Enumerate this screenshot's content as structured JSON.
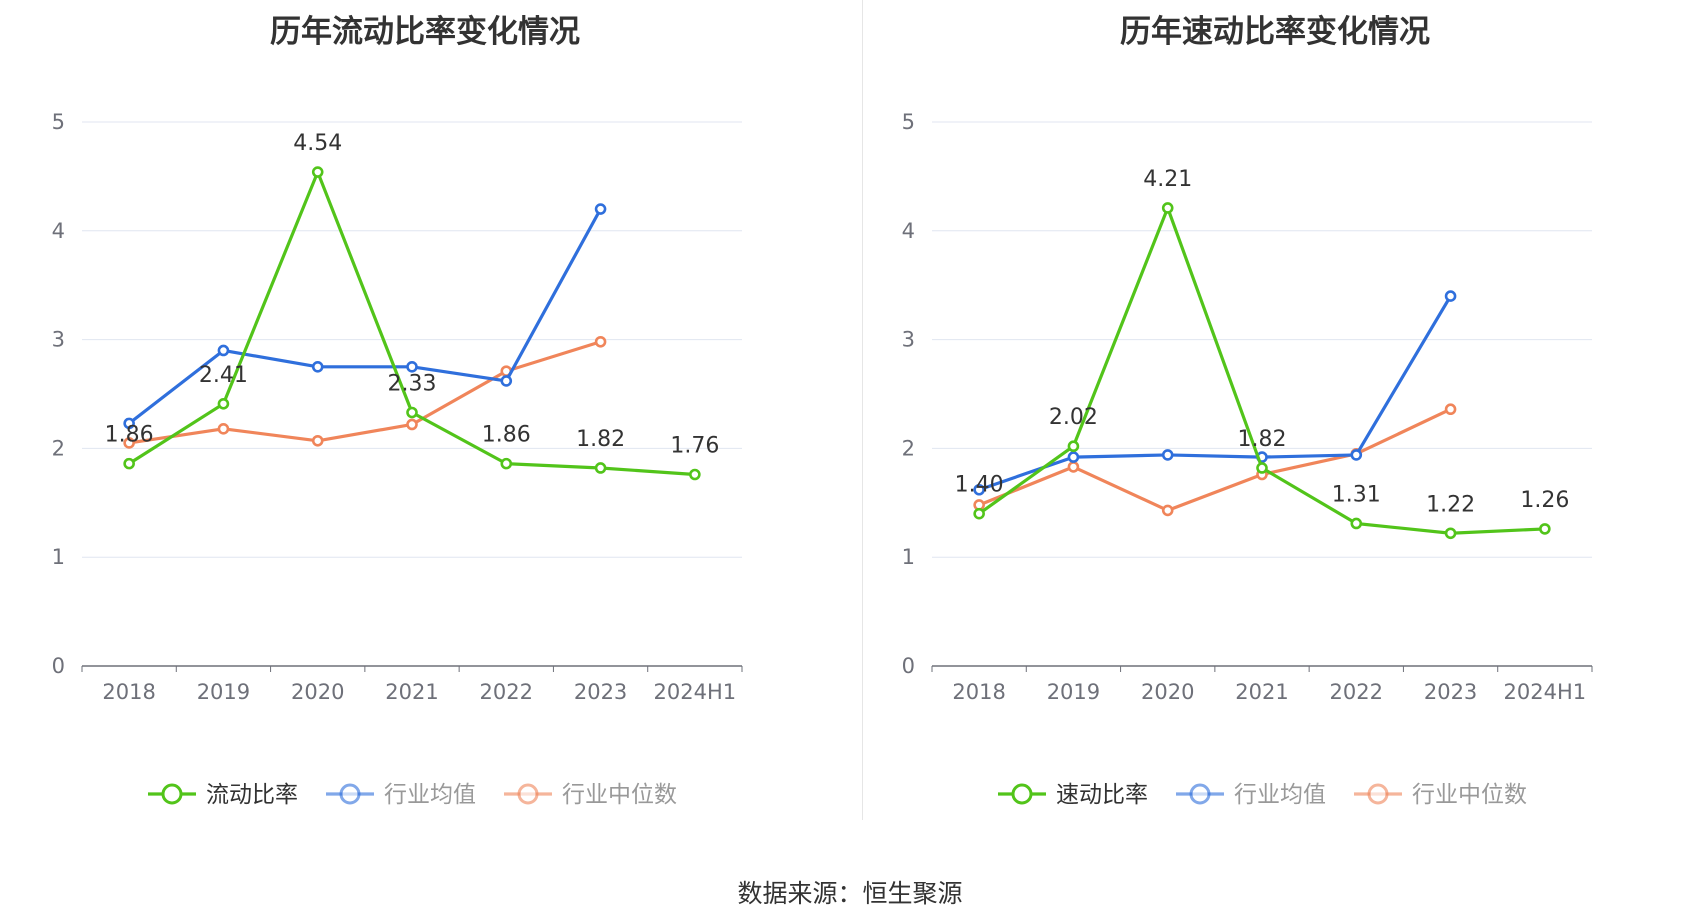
{
  "source_text": "数据来源：恒生聚源",
  "chart_data": [
    {
      "type": "line",
      "title": "历年流动比率变化情况",
      "categories": [
        "2018",
        "2019",
        "2020",
        "2021",
        "2022",
        "2023",
        "2024H1"
      ],
      "ylim": [
        0,
        5
      ],
      "yticks": [
        "0",
        "1",
        "2",
        "3",
        "4",
        "5"
      ],
      "grid": true,
      "legend_position": "bottom",
      "series": [
        {
          "name": "流动比率",
          "color": "#52c41a",
          "values": [
            1.86,
            2.41,
            4.54,
            2.33,
            1.86,
            1.82,
            1.76
          ],
          "labels": [
            "1.86",
            "2.41",
            "4.54",
            "2.33",
            "1.86",
            "1.82",
            "1.76"
          ]
        },
        {
          "name": "行业均值",
          "color": "#2f6fdc",
          "values": [
            2.23,
            2.9,
            2.75,
            2.75,
            2.62,
            4.2,
            null
          ]
        },
        {
          "name": "行业中位数",
          "color": "#f0855a",
          "values": [
            2.05,
            2.18,
            2.07,
            2.22,
            2.71,
            2.98,
            null
          ]
        }
      ]
    },
    {
      "type": "line",
      "title": "历年速动比率变化情况",
      "categories": [
        "2018",
        "2019",
        "2020",
        "2021",
        "2022",
        "2023",
        "2024H1"
      ],
      "ylim": [
        0,
        5
      ],
      "yticks": [
        "0",
        "1",
        "2",
        "3",
        "4",
        "5"
      ],
      "grid": true,
      "legend_position": "bottom",
      "series": [
        {
          "name": "速动比率",
          "color": "#52c41a",
          "values": [
            1.4,
            2.02,
            4.21,
            1.82,
            1.31,
            1.22,
            1.26
          ],
          "labels": [
            "1.40",
            "2.02",
            "4.21",
            "1.82",
            "1.31",
            "1.22",
            "1.26"
          ]
        },
        {
          "name": "行业均值",
          "color": "#2f6fdc",
          "values": [
            1.62,
            1.92,
            1.94,
            1.92,
            1.94,
            3.4,
            null
          ]
        },
        {
          "name": "行业中位数",
          "color": "#f0855a",
          "values": [
            1.48,
            1.83,
            1.43,
            1.76,
            1.95,
            2.36,
            null
          ]
        }
      ]
    }
  ]
}
